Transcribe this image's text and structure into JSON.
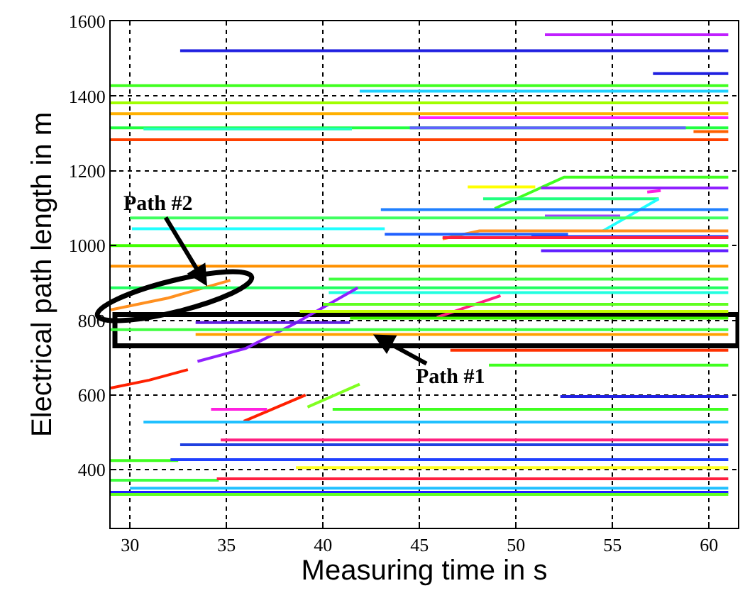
{
  "chart_data": {
    "type": "line",
    "xlabel": "Measuring time in s",
    "ylabel": "Electrical path length in m",
    "xlim": [
      29,
      61.5
    ],
    "ylim": [
      245,
      1600
    ],
    "xticks": [
      30,
      35,
      40,
      45,
      50,
      55,
      60
    ],
    "yticks": [
      400,
      600,
      800,
      1000,
      1200,
      1400,
      1600
    ],
    "grid": true,
    "annotations": [
      {
        "text": "Path #2",
        "x": 34,
        "y": 891
      },
      {
        "text": "Path #1",
        "x": 42.6,
        "y": 762
      }
    ],
    "series": [
      {
        "color": "#c020ff",
        "x": [
          51.5,
          61
        ],
        "values": [
          1564,
          1564
        ]
      },
      {
        "color": "#2020e0",
        "x": [
          32.6,
          61
        ],
        "values": [
          1521,
          1521
        ]
      },
      {
        "color": "#2020e0",
        "x": [
          57.1,
          61
        ],
        "values": [
          1460,
          1460
        ]
      },
      {
        "color": "#40ff20",
        "x": [
          29,
          61
        ],
        "values": [
          1428,
          1428
        ]
      },
      {
        "color": "#20d0ff",
        "x": [
          41.9,
          61
        ],
        "values": [
          1413,
          1413
        ]
      },
      {
        "color": "#a0ff00",
        "x": [
          29,
          61
        ],
        "values": [
          1382,
          1382
        ]
      },
      {
        "color": "#ffb000",
        "x": [
          29,
          61
        ],
        "values": [
          1353,
          1353
        ]
      },
      {
        "color": "#ff20ff",
        "x": [
          45,
          61
        ],
        "values": [
          1342,
          1342
        ]
      },
      {
        "color": "#20ff40",
        "x": [
          29,
          61
        ],
        "values": [
          1315,
          1315
        ]
      },
      {
        "color": "#20ffc0",
        "x": [
          30.7,
          41.5
        ],
        "values": [
          1312,
          1312
        ]
      },
      {
        "color": "#6060ff",
        "x": [
          44.5,
          58.8
        ],
        "values": [
          1315,
          1315
        ]
      },
      {
        "color": "#ff6000",
        "x": [
          59.2,
          61
        ],
        "values": [
          1305,
          1305
        ]
      },
      {
        "color": "#ff4000",
        "x": [
          29,
          61
        ],
        "values": [
          1283,
          1283
        ]
      },
      {
        "color": "#40ff20",
        "x": [
          48.9,
          52.5,
          61
        ],
        "values": [
          1099,
          1183,
          1183
        ]
      },
      {
        "color": "#ffff00",
        "x": [
          47.5,
          51
        ],
        "values": [
          1157,
          1157
        ]
      },
      {
        "color": "#9020ff",
        "x": [
          51.3,
          61
        ],
        "values": [
          1154,
          1154
        ]
      },
      {
        "color": "#ff20e0",
        "x": [
          56.8,
          57.5
        ],
        "values": [
          1143,
          1147
        ]
      },
      {
        "color": "#20ff80",
        "x": [
          48.3,
          57.4
        ],
        "values": [
          1125,
          1125
        ]
      },
      {
        "color": "#20ffff",
        "x": [
          54.5,
          57.4
        ],
        "values": [
          1039,
          1125
        ]
      },
      {
        "color": "#2080ff",
        "x": [
          43,
          61
        ],
        "values": [
          1096,
          1096
        ]
      },
      {
        "color": "#a040ff",
        "x": [
          51.5,
          55.4
        ],
        "values": [
          1079,
          1079
        ]
      },
      {
        "color": "#40ff60",
        "x": [
          30,
          61
        ],
        "values": [
          1074,
          1074
        ]
      },
      {
        "color": "#20ffff",
        "x": [
          30.1,
          43.2
        ],
        "values": [
          1045,
          1045
        ]
      },
      {
        "color": "#ff9020",
        "x": [
          46.2,
          48.1,
          61
        ],
        "values": [
          1018,
          1039,
          1039
        ]
      },
      {
        "color": "#2060ff",
        "x": [
          43.2,
          52.7
        ],
        "values": [
          1030,
          1030
        ]
      },
      {
        "color": "#2040ff",
        "x": [
          50.8,
          61
        ],
        "values": [
          1024,
          1024
        ]
      },
      {
        "color": "#ff2040",
        "x": [
          46.2,
          61
        ],
        "values": [
          1021,
          1021
        ]
      },
      {
        "color": "#40ff00",
        "x": [
          29,
          61
        ],
        "values": [
          1000,
          1000
        ]
      },
      {
        "color": "#6020ff",
        "x": [
          51.3,
          61
        ],
        "values": [
          986,
          986
        ]
      },
      {
        "color": "#ff9000",
        "x": [
          29,
          61
        ],
        "values": [
          945,
          945
        ]
      },
      {
        "color": "#40ff40",
        "x": [
          40.3,
          61
        ],
        "values": [
          910,
          910
        ]
      },
      {
        "color": "#ff9020",
        "x": [
          29,
          32,
          35.2
        ],
        "values": [
          828,
          860,
          907
        ]
      },
      {
        "color": "#20ff60",
        "x": [
          29,
          61
        ],
        "values": [
          887,
          887
        ]
      },
      {
        "color": "#20ffe0",
        "x": [
          40.3,
          61
        ],
        "values": [
          874,
          874
        ]
      },
      {
        "color": "#ff2000",
        "x": [
          29,
          31,
          33
        ],
        "values": [
          619,
          640,
          668
        ]
      },
      {
        "color": "#9020ff",
        "x": [
          33.5,
          36,
          38.5,
          41.8
        ],
        "values": [
          690,
          725,
          790,
          887
        ]
      },
      {
        "color": "#ff2080",
        "x": [
          45.9,
          49.2
        ],
        "values": [
          808,
          866
        ]
      },
      {
        "color": "#60ff20",
        "x": [
          40,
          61
        ],
        "values": [
          843,
          843
        ]
      },
      {
        "color": "#c0ff00",
        "x": [
          38.8,
          61
        ],
        "values": [
          824,
          824
        ]
      },
      {
        "color": "#40ff00",
        "x": [
          41.4,
          61
        ],
        "values": [
          806,
          806
        ]
      },
      {
        "color": "#6020e0",
        "x": [
          33.4,
          41.4
        ],
        "values": [
          794,
          794
        ]
      },
      {
        "color": "#40ff40",
        "x": [
          29,
          61
        ],
        "values": [
          775,
          775
        ]
      },
      {
        "color": "#ffa000",
        "x": [
          33.4,
          61
        ],
        "values": [
          762,
          762
        ]
      },
      {
        "color": "#ff3000",
        "x": [
          46.6,
          61
        ],
        "values": [
          720,
          720
        ]
      },
      {
        "color": "#40ff20",
        "x": [
          48.6,
          61
        ],
        "values": [
          680,
          680
        ]
      },
      {
        "color": "#80ff20",
        "x": [
          39.2,
          41.9
        ],
        "values": [
          568,
          629
        ]
      },
      {
        "color": "#ff2000",
        "x": [
          35.9,
          39.1
        ],
        "values": [
          530,
          600
        ]
      },
      {
        "color": "#2020e0",
        "x": [
          52.3,
          61
        ],
        "values": [
          596,
          596
        ]
      },
      {
        "color": "#ff20e0",
        "x": [
          34.2,
          37.1
        ],
        "values": [
          562,
          562
        ]
      },
      {
        "color": "#40ff20",
        "x": [
          40.5,
          61
        ],
        "values": [
          562,
          562
        ]
      },
      {
        "color": "#20c0ff",
        "x": [
          30.7,
          61
        ],
        "values": [
          528,
          528
        ]
      },
      {
        "color": "#ff2080",
        "x": [
          34.7,
          61
        ],
        "values": [
          480,
          480
        ]
      },
      {
        "color": "#2040e0",
        "x": [
          32.6,
          61
        ],
        "values": [
          467,
          467
        ]
      },
      {
        "color": "#40ff20",
        "x": [
          29,
          32.5
        ],
        "values": [
          425,
          425
        ]
      },
      {
        "color": "#2040ff",
        "x": [
          32.1,
          61
        ],
        "values": [
          427,
          427
        ]
      },
      {
        "color": "#ffff20",
        "x": [
          38.6,
          61
        ],
        "values": [
          406,
          406
        ]
      },
      {
        "color": "#40ff40",
        "x": [
          29,
          34.6
        ],
        "values": [
          372,
          372
        ]
      },
      {
        "color": "#ff2040",
        "x": [
          34.5,
          61
        ],
        "values": [
          376,
          376
        ]
      },
      {
        "color": "#20c0ff",
        "x": [
          30,
          61
        ],
        "values": [
          351,
          351
        ]
      },
      {
        "color": "#2020ff",
        "x": [
          29,
          61
        ],
        "values": [
          340,
          340
        ]
      },
      {
        "color": "#60ff20",
        "x": [
          29,
          61
        ],
        "values": [
          334,
          334
        ]
      }
    ]
  }
}
